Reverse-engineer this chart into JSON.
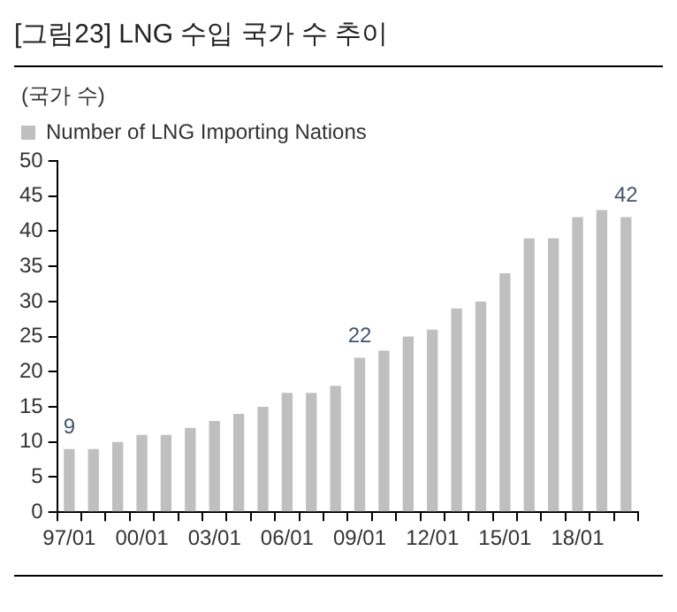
{
  "chart_data": {
    "type": "bar",
    "title": "[그림23]  LNG 수입 국가 수 추이",
    "ylabel": "(국가 수)",
    "categories": [
      "97/01",
      null,
      null,
      "00/01",
      null,
      null,
      "03/01",
      null,
      null,
      "06/01",
      null,
      null,
      "09/01",
      null,
      null,
      "12/01",
      null,
      null,
      "15/01",
      null,
      null,
      "18/01",
      null,
      null
    ],
    "series": [
      {
        "name": "Number of LNG Importing Nations",
        "color": "#bfbfbf",
        "values": [
          9,
          9,
          10,
          11,
          11,
          12,
          13,
          14,
          15,
          17,
          17,
          18,
          22,
          23,
          25,
          26,
          29,
          30,
          34,
          39,
          39,
          42,
          43,
          42
        ],
        "value_labels": [
          "9",
          null,
          null,
          null,
          null,
          null,
          null,
          null,
          null,
          null,
          null,
          null,
          "22",
          null,
          null,
          null,
          null,
          null,
          null,
          null,
          null,
          null,
          null,
          "42"
        ]
      }
    ],
    "ylim": [
      0,
      50
    ],
    "yticks": [
      0,
      5,
      10,
      15,
      20,
      25,
      30,
      35,
      40,
      45,
      50
    ],
    "grid": false,
    "legend": "top"
  }
}
